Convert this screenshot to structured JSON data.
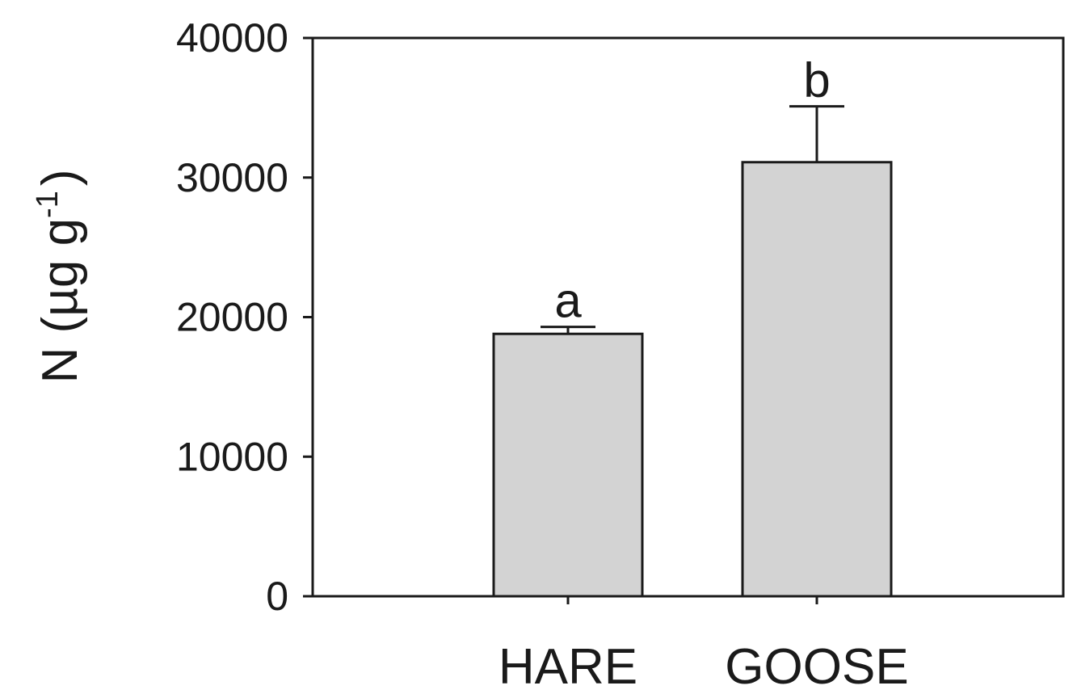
{
  "chart_data": {
    "type": "bar",
    "title": "",
    "xlabel": "",
    "ylabel": {
      "main": "N (µg g",
      "superscript": "-1",
      "close": ")"
    },
    "ylim": [
      0,
      40000
    ],
    "yticks": [
      0,
      10000,
      20000,
      30000,
      40000
    ],
    "grid": false,
    "legend": "none",
    "categories": [
      "HARE",
      "GOOSE"
    ],
    "values": [
      18800,
      31100
    ],
    "error_upper": [
      19300,
      35100
    ],
    "significance_labels": [
      "a",
      "b"
    ],
    "bar_color": "#d3d3d3",
    "line_color": "#1a1a1a"
  }
}
